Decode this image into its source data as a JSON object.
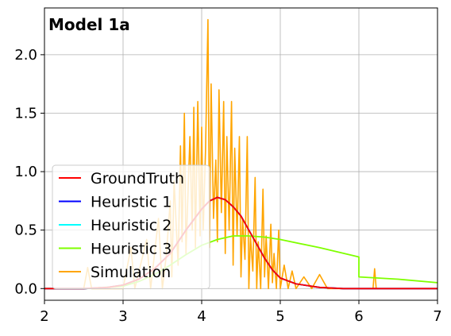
{
  "chart_data": {
    "type": "line",
    "title": "Model 1a",
    "xlabel": "",
    "ylabel": "",
    "xlim": [
      2,
      7
    ],
    "ylim": [
      -0.1,
      2.4
    ],
    "xticks": [
      2,
      3,
      4,
      5,
      6,
      7
    ],
    "yticks": [
      0.0,
      0.5,
      1.0,
      1.5,
      2.0
    ],
    "xtick_labels": [
      "2",
      "3",
      "4",
      "5",
      "6",
      "7"
    ],
    "ytick_labels": [
      "0.0",
      "0.5",
      "1.0",
      "1.5",
      "2.0"
    ],
    "grid": true,
    "legend_position": "lower-left",
    "series": [
      {
        "name": "GroundTruth",
        "color": "#ff0000",
        "x": [
          2.0,
          2.5,
          2.8,
          3.0,
          3.2,
          3.4,
          3.6,
          3.8,
          4.0,
          4.1,
          4.2,
          4.3,
          4.4,
          4.5,
          4.6,
          4.7,
          4.8,
          4.9,
          5.0,
          5.2,
          5.5,
          5.8,
          6.0,
          6.5,
          7.0
        ],
        "y": [
          0.0,
          0.0,
          0.01,
          0.03,
          0.08,
          0.17,
          0.3,
          0.5,
          0.68,
          0.75,
          0.78,
          0.76,
          0.7,
          0.62,
          0.5,
          0.38,
          0.26,
          0.16,
          0.09,
          0.04,
          0.01,
          0.0,
          0.0,
          0.0,
          0.0
        ]
      },
      {
        "name": "Heuristic 1",
        "color": "#0000ff",
        "x": [
          2.0,
          2.5,
          2.8,
          3.0,
          3.2,
          3.4,
          3.6,
          3.8,
          4.0,
          4.1,
          4.2,
          4.3,
          4.4,
          4.5,
          4.6,
          4.7,
          4.8,
          4.9,
          5.0,
          5.2,
          5.5,
          5.8,
          6.0,
          6.5,
          7.0
        ],
        "y": [
          0.0,
          0.0,
          0.01,
          0.03,
          0.08,
          0.17,
          0.3,
          0.5,
          0.68,
          0.75,
          0.78,
          0.76,
          0.7,
          0.62,
          0.5,
          0.38,
          0.26,
          0.16,
          0.09,
          0.04,
          0.01,
          0.0,
          0.0,
          0.0,
          0.0
        ]
      },
      {
        "name": "Heuristic 2",
        "color": "#00ffff",
        "x": [
          2.0,
          2.5,
          2.8,
          3.0,
          3.2,
          3.4,
          3.6,
          3.8,
          4.0,
          4.1,
          4.2,
          4.3,
          4.4,
          4.5,
          4.6,
          4.7,
          4.8,
          4.9,
          5.0,
          5.2,
          5.5,
          5.8,
          6.0,
          6.5,
          7.0
        ],
        "y": [
          0.0,
          0.0,
          0.01,
          0.03,
          0.08,
          0.17,
          0.3,
          0.5,
          0.68,
          0.75,
          0.78,
          0.76,
          0.7,
          0.62,
          0.5,
          0.38,
          0.26,
          0.16,
          0.09,
          0.04,
          0.01,
          0.0,
          0.0,
          0.0,
          0.0
        ]
      },
      {
        "name": "Heuristic 3",
        "color": "#7fff00",
        "x": [
          2.0,
          2.5,
          3.0,
          3.2,
          3.4,
          3.6,
          3.8,
          4.0,
          4.2,
          4.4,
          4.6,
          4.8,
          5.0,
          5.5,
          6.0,
          6.0,
          6.5,
          7.0
        ],
        "y": [
          0.0,
          0.0,
          0.02,
          0.06,
          0.12,
          0.2,
          0.29,
          0.37,
          0.42,
          0.45,
          0.45,
          0.44,
          0.42,
          0.35,
          0.27,
          0.1,
          0.08,
          0.05
        ]
      },
      {
        "name": "Simulation",
        "color": "#ffa500",
        "x": [
          2.0,
          2.5,
          2.55,
          2.6,
          3.0,
          3.1,
          3.15,
          3.3,
          3.35,
          3.45,
          3.5,
          3.55,
          3.6,
          3.62,
          3.65,
          3.7,
          3.73,
          3.75,
          3.78,
          3.8,
          3.85,
          3.88,
          3.9,
          3.92,
          3.95,
          3.98,
          4.0,
          4.02,
          4.05,
          4.08,
          4.1,
          4.12,
          4.15,
          4.18,
          4.2,
          4.22,
          4.25,
          4.28,
          4.3,
          4.32,
          4.35,
          4.38,
          4.4,
          4.42,
          4.45,
          4.48,
          4.5,
          4.52,
          4.55,
          4.58,
          4.6,
          4.62,
          4.65,
          4.68,
          4.7,
          4.72,
          4.75,
          4.78,
          4.8,
          4.82,
          4.85,
          4.88,
          4.9,
          4.92,
          4.95,
          4.98,
          5.0,
          5.05,
          5.1,
          5.15,
          5.2,
          5.3,
          5.4,
          5.5,
          5.6,
          5.8,
          6.0,
          6.18,
          6.2,
          6.22,
          6.5,
          7.0
        ],
        "y": [
          0.0,
          0.0,
          0.18,
          0.0,
          0.0,
          0.35,
          0.0,
          0.42,
          0.0,
          0.6,
          0.0,
          0.28,
          0.75,
          0.1,
          0.92,
          0.2,
          1.22,
          0.4,
          1.5,
          0.3,
          1.3,
          0.5,
          1.55,
          0.35,
          1.6,
          0.45,
          1.38,
          0.5,
          1.2,
          2.3,
          0.35,
          1.75,
          0.6,
          1.1,
          0.4,
          1.7,
          0.65,
          1.6,
          0.3,
          1.3,
          0.5,
          1.6,
          0.2,
          1.2,
          0.45,
          1.3,
          0.1,
          0.6,
          0.25,
          1.3,
          0.0,
          0.45,
          0.15,
          0.95,
          0.0,
          0.4,
          0.0,
          0.85,
          0.1,
          0.45,
          0.0,
          0.55,
          0.05,
          0.3,
          0.0,
          0.5,
          0.0,
          0.2,
          0.0,
          0.15,
          0.0,
          0.1,
          0.0,
          0.12,
          0.0,
          0.0,
          0.0,
          0.0,
          0.17,
          0.0,
          0.0,
          0.0
        ]
      }
    ]
  }
}
